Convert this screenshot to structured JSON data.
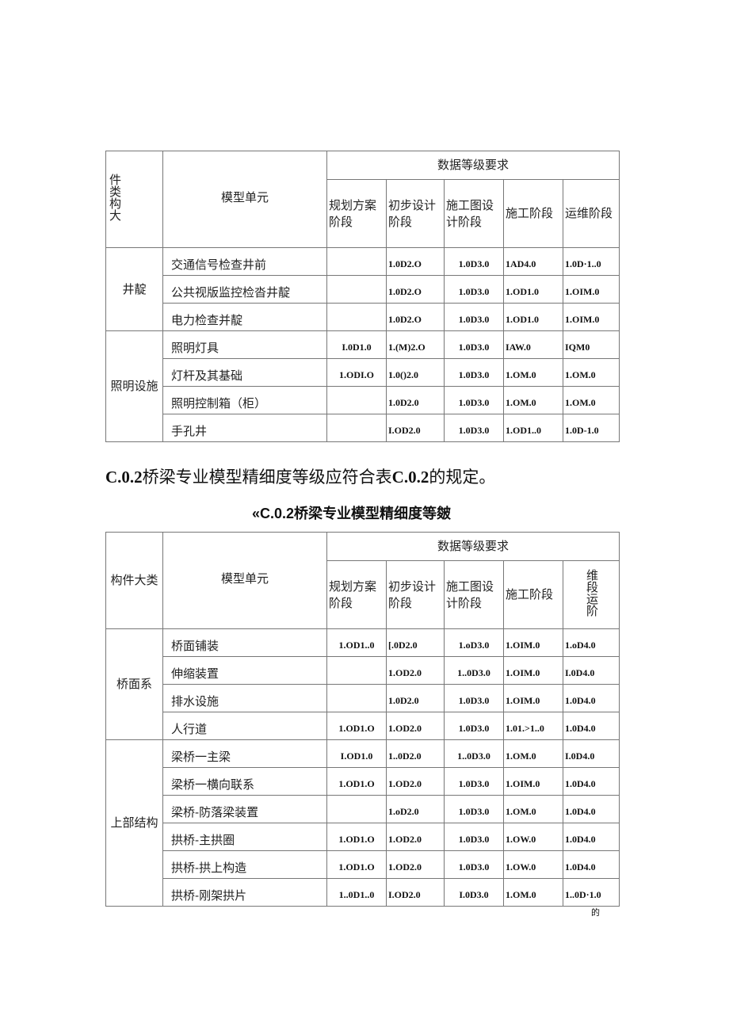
{
  "table1": {
    "col_category": "件类构大",
    "col_unit": "模型单元",
    "group_header": "数据等级要求",
    "stages": [
      "规划方案阶段",
      "初步设计阶段",
      "施工图设计阶段",
      "施工阶段",
      "运维阶段"
    ],
    "groups": [
      {
        "category": "井靛",
        "rows": [
          {
            "unit": "交通信号检查井前",
            "values": [
              "",
              "1.0D2.O",
              "1.0D3.0",
              "1AD4.0",
              "1.0D·1..0"
            ]
          },
          {
            "unit": "公共视版监控检沓井靛",
            "values": [
              "",
              "1.0D2.O",
              "1.0D3.0",
              "1.OD1.0",
              "1.OIM.0"
            ]
          },
          {
            "unit": "电力检查并靛",
            "values": [
              "",
              "1.0D2.O",
              "1.0D3.0",
              "1.OD1.0",
              "1.OIM.0"
            ]
          }
        ]
      },
      {
        "category": "照明设施",
        "rows": [
          {
            "unit": "照明灯具",
            "values": [
              "I.0D1.0",
              "1.(M)2.O",
              "1.0D3.0",
              "IAW.0",
              "IQM0"
            ]
          },
          {
            "unit": "灯杆及其基础",
            "values": [
              "1.ODI.O",
              "1.0()2.0",
              "1.0D3.0",
              "1.OM.0",
              "1.OM.0"
            ]
          },
          {
            "unit": "照明控制箱（柜）",
            "values": [
              "",
              "1.0D2.0",
              "1.0D3.0",
              "1.OM.0",
              "1.OM.0"
            ]
          },
          {
            "unit": "手孔井",
            "values": [
              "",
              "I.OD2.0",
              "1.0D3.0",
              "1.OD1..0",
              "1.0D-1.0"
            ]
          }
        ]
      }
    ]
  },
  "paragraph": {
    "prefix": "C.0.2",
    "text": "桥梁专业模型精细度等级应符合表",
    "ref": "C.0.2",
    "suffix": "的规定。"
  },
  "caption": "«C.0.2桥梁专业模型精细度等皴",
  "table2": {
    "col_category": "构件大类",
    "col_unit": "模型单元",
    "group_header": "数据等级要求",
    "stages": [
      "规划方案阶段",
      "初步设计阶段",
      "施工图设计阶段",
      "施工阶段",
      "维段运阶"
    ],
    "groups": [
      {
        "category": "桥面系",
        "rows": [
          {
            "unit": "桥面铺装",
            "values": [
              "1.OD1..0",
              "[.0D2.0",
              "1.oD3.0",
              "1.OIM.0",
              "1.oD4.0"
            ]
          },
          {
            "unit": "伸缩装置",
            "values": [
              "",
              "1.OD2.0",
              "1..0D3.0",
              "1.OIM.0",
              "I.0D4.0"
            ]
          },
          {
            "unit": "排水设施",
            "values": [
              "",
              "1.0D2.0",
              "1.0D3.0",
              "1.OIM.0",
              "1.0D4.0"
            ]
          },
          {
            "unit": "人行道",
            "values": [
              "1.OD1.O",
              "1.OD2.0",
              "1.0D3.0",
              "1.01.>1..0",
              "1.0D4.0"
            ]
          }
        ]
      },
      {
        "category": "上部结构",
        "rows": [
          {
            "unit": "梁桥一主梁",
            "values": [
              "I.OD1.0",
              "1..0D2.0",
              "1..0D3.0",
              "1.OM.0",
              "I.0D4.0"
            ]
          },
          {
            "unit": "梁桥一横向联系",
            "values": [
              "1.OD1.O",
              "1.OD2.0",
              "1.0D3.0",
              "1.OIM.0",
              "1.0D4.0"
            ]
          },
          {
            "unit": "梁桥-防落梁装置",
            "values": [
              "",
              "1.oD2.0",
              "1.0D3.0",
              "1.OM.0",
              "1.0D4.0"
            ]
          },
          {
            "unit": "拱桥-主拱圈",
            "values": [
              "1.OD1.O",
              "1.OD2.0",
              "1.0D3.0",
              "1.OW.0",
              "1.0D4.0"
            ]
          },
          {
            "unit": "拱桥-拱上构造",
            "values": [
              "1.OD1.O",
              "1.OD2.0",
              "1.0D3.0",
              "1.OW.0",
              "1.0D4.0"
            ]
          },
          {
            "unit": "拱桥-刚架拱片",
            "values": [
              "1..0D1..0",
              "I.OD2.0",
              "I.0D3.0",
              "1.OM.0",
              "1..0D·1.0"
            ]
          }
        ]
      }
    ]
  },
  "footer": "的"
}
